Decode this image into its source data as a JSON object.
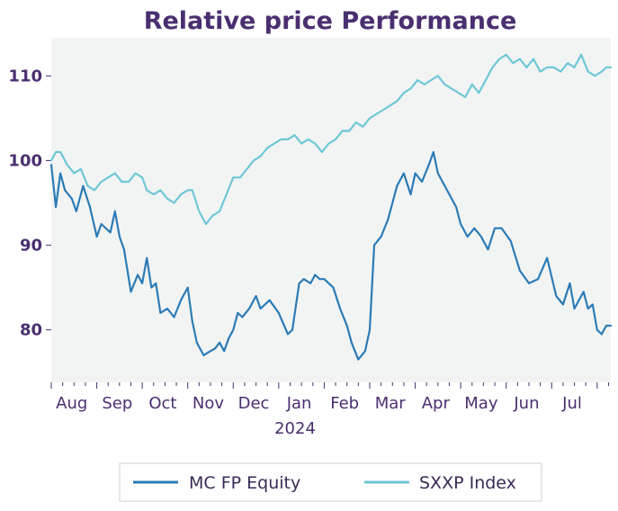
{
  "chart_data": {
    "type": "line",
    "title": "Relative price Performance",
    "xlabel": "",
    "ylabel": "",
    "x_tick_labels": [
      "Aug",
      "Sep",
      "Oct",
      "Nov",
      "Dec",
      "Jan",
      "Feb",
      "Mar",
      "Apr",
      "May",
      "Jun",
      "Jul"
    ],
    "x_year_label": "2024",
    "yticks": [
      80,
      90,
      100,
      110
    ],
    "ylim": [
      73.8,
      114.5
    ],
    "xlim": [
      0,
      12.3
    ],
    "grid": false,
    "legend_position": "bottom",
    "background_color": "#f2f4f4",
    "series": [
      {
        "name": "MC FP Equity",
        "color": "#2c7bb6",
        "x": [
          0.0,
          0.1,
          0.2,
          0.3,
          0.45,
          0.55,
          0.7,
          0.85,
          1.0,
          1.1,
          1.3,
          1.4,
          1.5,
          1.6,
          1.75,
          1.9,
          2.0,
          2.1,
          2.2,
          2.3,
          2.4,
          2.55,
          2.7,
          2.85,
          3.0,
          3.1,
          3.2,
          3.35,
          3.5,
          3.6,
          3.7,
          3.8,
          3.9,
          4.0,
          4.1,
          4.2,
          4.35,
          4.5,
          4.6,
          4.8,
          5.0,
          5.2,
          5.3,
          5.45,
          5.55,
          5.7,
          5.8,
          5.9,
          6.0,
          6.1,
          6.2,
          6.35,
          6.5,
          6.6,
          6.75,
          6.9,
          7.0,
          7.1,
          7.25,
          7.4,
          7.5,
          7.6,
          7.75,
          7.9,
          8.0,
          8.15,
          8.3,
          8.4,
          8.5,
          8.7,
          8.9,
          9.0,
          9.15,
          9.3,
          9.45,
          9.6,
          9.75,
          9.9,
          10.1,
          10.3,
          10.5,
          10.7,
          10.9,
          11.1,
          11.25,
          11.4,
          11.5,
          11.6,
          11.7,
          11.8,
          11.9,
          12.0,
          12.1,
          12.2,
          12.3
        ],
        "values": [
          99.5,
          94.5,
          98.5,
          96.5,
          95.5,
          94.0,
          97.0,
          94.5,
          91.0,
          92.5,
          91.5,
          94.0,
          91.0,
          89.5,
          84.5,
          86.5,
          85.5,
          88.5,
          85.0,
          85.5,
          82.0,
          82.5,
          81.5,
          83.5,
          85.0,
          81.0,
          78.5,
          77.0,
          77.5,
          77.8,
          78.5,
          77.5,
          79.0,
          80.0,
          82.0,
          81.5,
          82.5,
          84.0,
          82.5,
          83.5,
          82.0,
          79.5,
          80.0,
          85.5,
          86.0,
          85.5,
          86.5,
          86.0,
          86.0,
          85.5,
          85.0,
          82.5,
          80.5,
          78.5,
          76.5,
          77.5,
          80.0,
          90.0,
          91.0,
          93.0,
          95.0,
          97.0,
          98.5,
          96.0,
          98.5,
          97.5,
          99.5,
          101.0,
          98.5,
          96.5,
          94.5,
          92.5,
          91.0,
          92.0,
          91.0,
          89.5,
          92.0,
          92.0,
          90.5,
          87.0,
          85.5,
          86.0,
          88.5,
          84.0,
          83.0,
          85.5,
          82.5,
          83.5,
          84.5,
          82.5,
          83.0,
          80.0,
          79.5,
          80.5,
          80.5
        ]
      },
      {
        "name": "SXXP Index",
        "color": "#6fc7d6",
        "x": [
          0.0,
          0.1,
          0.2,
          0.35,
          0.5,
          0.65,
          0.8,
          0.95,
          1.1,
          1.25,
          1.4,
          1.55,
          1.7,
          1.85,
          2.0,
          2.1,
          2.25,
          2.4,
          2.55,
          2.7,
          2.85,
          3.0,
          3.1,
          3.25,
          3.4,
          3.55,
          3.7,
          3.85,
          4.0,
          4.15,
          4.3,
          4.45,
          4.6,
          4.75,
          4.9,
          5.05,
          5.2,
          5.35,
          5.5,
          5.65,
          5.8,
          5.95,
          6.1,
          6.25,
          6.4,
          6.55,
          6.7,
          6.85,
          7.0,
          7.15,
          7.3,
          7.45,
          7.6,
          7.75,
          7.9,
          8.05,
          8.2,
          8.35,
          8.5,
          8.65,
          8.8,
          8.95,
          9.1,
          9.25,
          9.4,
          9.55,
          9.7,
          9.85,
          10.0,
          10.15,
          10.3,
          10.45,
          10.6,
          10.75,
          10.9,
          11.05,
          11.2,
          11.35,
          11.5,
          11.65,
          11.8,
          11.95,
          12.1,
          12.2,
          12.3
        ],
        "values": [
          100.0,
          101.0,
          101.0,
          99.5,
          98.5,
          99.0,
          97.0,
          96.5,
          97.5,
          98.0,
          98.5,
          97.5,
          97.5,
          98.5,
          98.0,
          96.5,
          96.0,
          96.5,
          95.5,
          95.0,
          96.0,
          96.5,
          96.5,
          94.0,
          92.5,
          93.5,
          94.0,
          96.0,
          98.0,
          98.0,
          99.0,
          100.0,
          100.5,
          101.5,
          102.0,
          102.5,
          102.5,
          103.0,
          102.0,
          102.5,
          102.0,
          101.0,
          102.0,
          102.5,
          103.5,
          103.5,
          104.5,
          104.0,
          105.0,
          105.5,
          106.0,
          106.5,
          107.0,
          108.0,
          108.5,
          109.5,
          109.0,
          109.5,
          110.0,
          109.0,
          108.5,
          108.0,
          107.5,
          109.0,
          108.0,
          109.5,
          111.0,
          112.0,
          112.5,
          111.5,
          112.0,
          111.0,
          112.0,
          110.5,
          111.0,
          111.0,
          110.5,
          111.5,
          111.0,
          112.5,
          110.5,
          110.0,
          110.5,
          111.0,
          111.0
        ]
      }
    ]
  }
}
